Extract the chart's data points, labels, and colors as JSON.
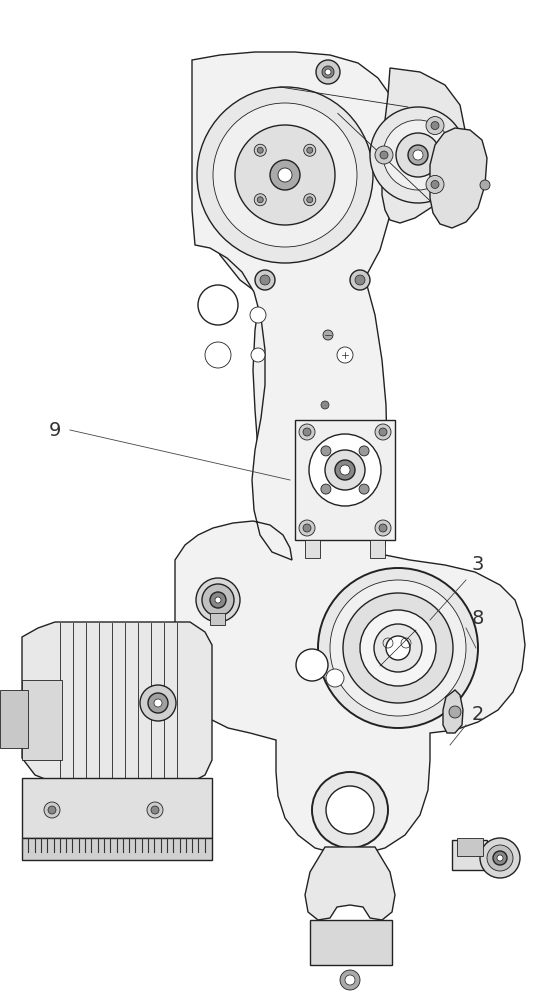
{
  "bg_color": "#ffffff",
  "line_color": "#444444",
  "dark_line": "#222222",
  "light_line": "#999999",
  "label_color": "#333333",
  "figsize": [
    5.43,
    10.0
  ],
  "dpi": 100,
  "xlim": [
    0,
    543
  ],
  "ylim": [
    0,
    1000
  ]
}
